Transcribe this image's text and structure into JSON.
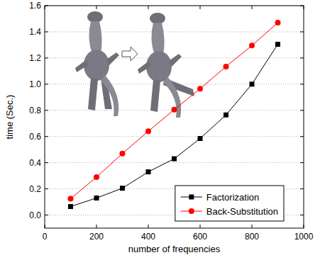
{
  "chart_data": {
    "type": "line",
    "x_label": "number of frequencies",
    "y_label": "time (Sec.)",
    "x": [
      100,
      200,
      300,
      400,
      500,
      600,
      700,
      800,
      900
    ],
    "series": [
      {
        "name": "Factorization",
        "color": "#000000",
        "marker": "square",
        "line_style": "solid",
        "values": [
          0.065,
          0.13,
          0.205,
          0.33,
          0.43,
          0.585,
          0.765,
          1.0,
          1.305
        ]
      },
      {
        "name": "Back-Substitution",
        "color": "#ff0000",
        "marker": "circle",
        "line_style": "solid",
        "values": [
          0.125,
          0.29,
          0.47,
          0.64,
          0.805,
          0.965,
          1.135,
          1.295,
          1.47
        ]
      }
    ],
    "xlim": [
      0,
      1000
    ],
    "xticks": [
      0,
      200,
      400,
      600,
      800,
      1000
    ],
    "ylim": [
      -0.1,
      1.6
    ],
    "yticks": [
      {
        "value": 0,
        "label": "0.0"
      },
      0.2,
      0.4,
      0.6,
      0.8,
      {
        "value": 1,
        "label": "1.0"
      },
      1.2,
      1.4,
      1.6
    ],
    "grid": true,
    "legend": "lower right"
  }
}
